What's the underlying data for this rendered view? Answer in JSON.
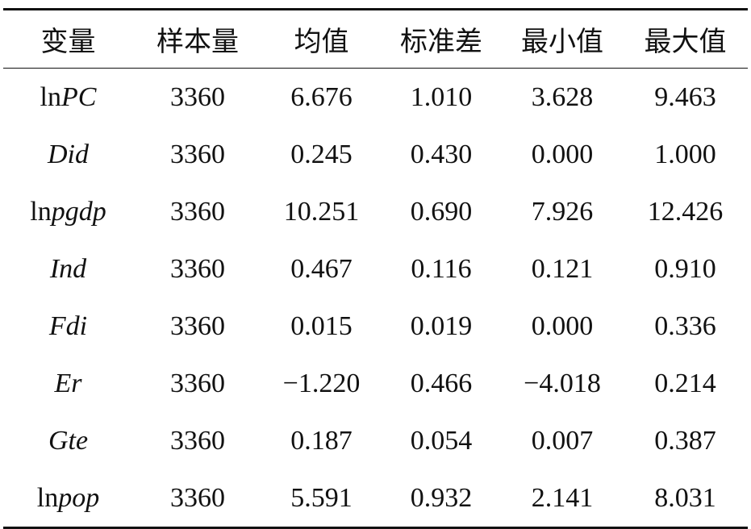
{
  "table": {
    "header": [
      "变量",
      "样本量",
      "均值",
      "标准差",
      "最小值",
      "最大值"
    ],
    "rows": [
      {
        "variable": {
          "roman": "ln",
          "italic": "PC"
        },
        "cells": [
          "3360",
          "6.676",
          "1.010",
          "3.628",
          "9.463"
        ]
      },
      {
        "variable": {
          "italic": "Did"
        },
        "cells": [
          "3360",
          "0.245",
          "0.430",
          "0.000",
          "1.000"
        ]
      },
      {
        "variable": {
          "roman": "ln",
          "italic": "pgdp"
        },
        "cells": [
          "3360",
          "10.251",
          "0.690",
          "7.926",
          "12.426"
        ]
      },
      {
        "variable": {
          "italic": "Ind"
        },
        "cells": [
          "3360",
          "0.467",
          "0.116",
          "0.121",
          "0.910"
        ]
      },
      {
        "variable": {
          "italic": "Fdi"
        },
        "cells": [
          "3360",
          "0.015",
          "0.019",
          "0.000",
          "0.336"
        ]
      },
      {
        "variable": {
          "italic": "Er"
        },
        "cells": [
          "3360",
          "−1.220",
          "0.466",
          "−4.018",
          "0.214"
        ]
      },
      {
        "variable": {
          "italic": "Gte"
        },
        "cells": [
          "3360",
          "0.187",
          "0.054",
          "0.007",
          "0.387"
        ]
      },
      {
        "variable": {
          "roman": "ln",
          "italic": "pop"
        },
        "cells": [
          "3360",
          "5.591",
          "0.932",
          "2.141",
          "8.031"
        ]
      }
    ]
  }
}
